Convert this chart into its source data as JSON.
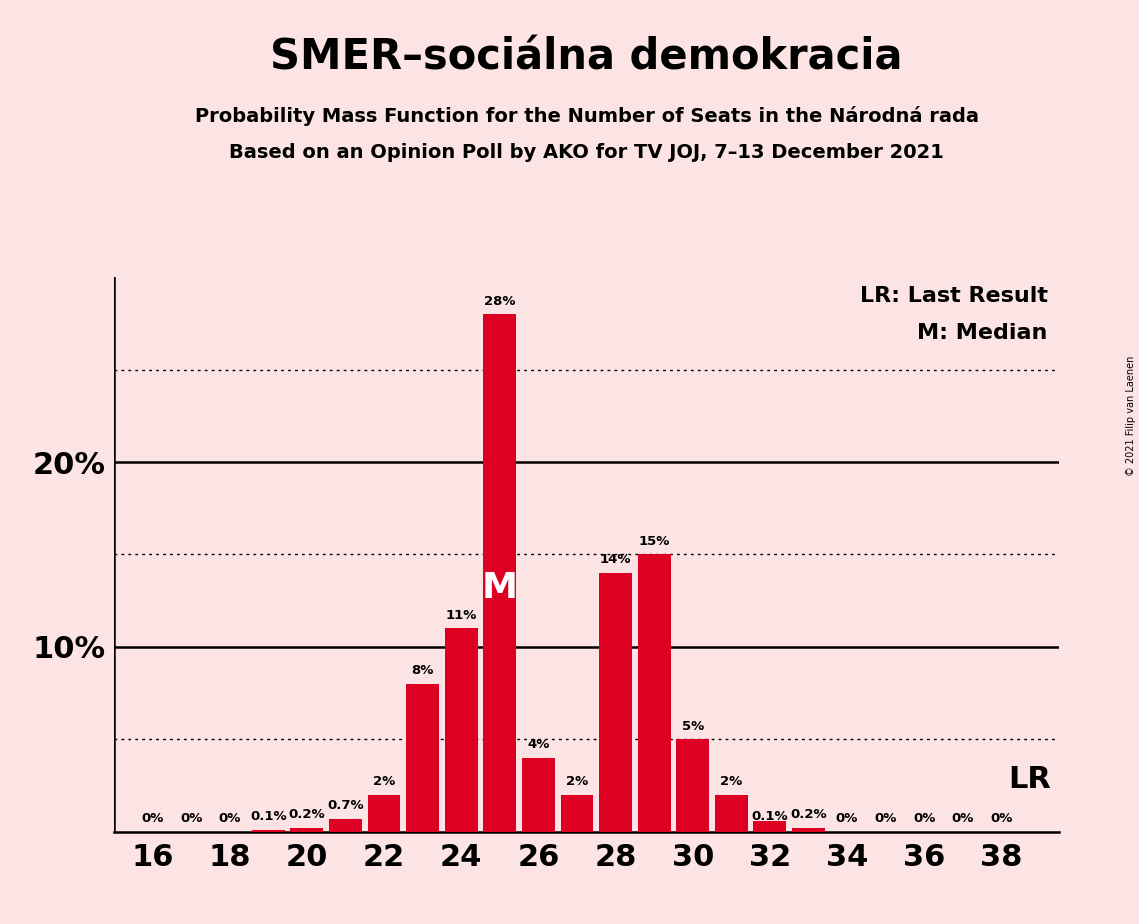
{
  "title": "SMER–sociálna demokracia",
  "subtitle1": "Probability Mass Function for the Number of Seats in the Národná rada",
  "subtitle2": "Based on an Opinion Poll by AKO for TV JOJ, 7–13 December 2021",
  "copyright": "© 2021 Filip van Laenen",
  "seats": [
    16,
    17,
    18,
    19,
    20,
    21,
    22,
    23,
    24,
    25,
    26,
    27,
    28,
    29,
    30,
    31,
    32,
    33,
    34,
    35,
    36,
    37,
    38
  ],
  "probabilities": [
    0.0,
    0.0,
    0.0,
    0.1,
    0.2,
    0.7,
    2.0,
    8.0,
    11.0,
    28.0,
    4.0,
    2.0,
    14.0,
    15.0,
    5.0,
    2.0,
    0.1,
    0.2,
    0.0,
    0.0,
    0.0,
    0.0,
    0.0
  ],
  "bar_color": "#dd0022",
  "bar_labels": [
    "0%",
    "0%",
    "0%",
    "0.1%",
    "0.2%",
    "0.7%",
    "2%",
    "8%",
    "11%",
    "28%",
    "4%",
    "2%",
    "14%",
    "15%",
    "5%",
    "2%",
    "0.1%",
    "0.2%",
    "0%",
    "0%",
    "0%",
    "0%",
    "0%"
  ],
  "background_color": "#fce4e4",
  "solid_yticks": [
    10,
    20
  ],
  "dotted_yticks": [
    5,
    15,
    25
  ],
  "median_seat": 25,
  "lr_seat": 32,
  "lr_label": "LR",
  "median_label": "M",
  "legend_lr": "LR: Last Result",
  "legend_m": "M: Median",
  "xlim_left": 15.0,
  "xlim_right": 39.5,
  "ylim_max": 30,
  "xlabel_seats": [
    16,
    18,
    20,
    22,
    24,
    26,
    28,
    30,
    32,
    34,
    36,
    38
  ],
  "label_fontsize": 9.5,
  "tick_fontsize": 22,
  "ytick_fontsize": 22,
  "title_fontsize": 30,
  "subtitle_fontsize": 14,
  "legend_fontsize": 16,
  "lr_fontsize": 22
}
